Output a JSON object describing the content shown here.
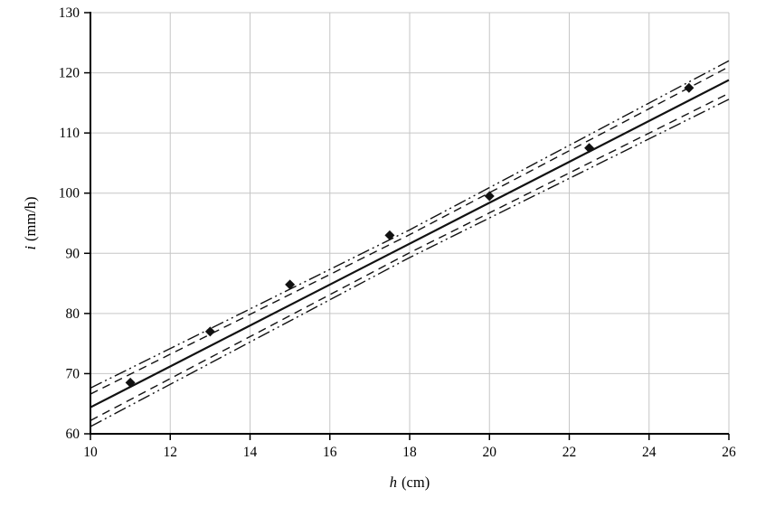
{
  "figure": {
    "background": "#ffffff",
    "xlabel": {
      "variable": "h",
      "unit": "(cm)"
    },
    "ylabel": {
      "variable": "i",
      "unit": "(mm/h)"
    }
  },
  "chart_data": {
    "type": "scatter",
    "title": "",
    "xlabel": "h (cm)",
    "ylabel": "i (mm/h)",
    "xlim": [
      10,
      26
    ],
    "ylim": [
      60,
      130
    ],
    "xticks": [
      10,
      12,
      14,
      16,
      18,
      20,
      22,
      24,
      26
    ],
    "yticks": [
      60,
      70,
      80,
      90,
      100,
      110,
      120,
      130
    ],
    "grid": true,
    "legend_position": "none",
    "colors": {
      "axis": "#000000",
      "grid": "#c6c6c6",
      "text": "#000000",
      "data": "#111111"
    },
    "series": [
      {
        "name": "outer-confidence-band-upper",
        "type": "line",
        "style": "dash-dot-dot",
        "color": "#111111",
        "width": 1.4,
        "x": [
          10,
          18,
          26
        ],
        "y": [
          67.6,
          93.9,
          122.0
        ]
      },
      {
        "name": "inner-confidence-band-upper",
        "type": "line",
        "style": "dashed",
        "color": "#111111",
        "width": 1.4,
        "x": [
          10,
          18,
          26
        ],
        "y": [
          66.6,
          93.1,
          121.0
        ]
      },
      {
        "name": "regression-line",
        "type": "line",
        "style": "solid",
        "color": "#111111",
        "width": 2.2,
        "x": [
          10,
          26
        ],
        "y": [
          64.4,
          118.8
        ]
      },
      {
        "name": "inner-confidence-band-lower",
        "type": "line",
        "style": "dashed",
        "color": "#111111",
        "width": 1.4,
        "x": [
          10,
          18,
          26
        ],
        "y": [
          62.2,
          90.1,
          116.6
        ]
      },
      {
        "name": "outer-confidence-band-lower",
        "type": "line",
        "style": "dash-dot-dot",
        "color": "#111111",
        "width": 1.4,
        "x": [
          10,
          18,
          26
        ],
        "y": [
          61.2,
          89.3,
          115.6
        ]
      },
      {
        "name": "observed-data-points",
        "type": "scatter",
        "marker": "diamond",
        "color": "#111111",
        "x": [
          11,
          13,
          15,
          17.5,
          20,
          22.5,
          25
        ],
        "y": [
          68.5,
          77,
          84.8,
          93,
          99.5,
          107.5,
          117.5
        ]
      }
    ]
  }
}
